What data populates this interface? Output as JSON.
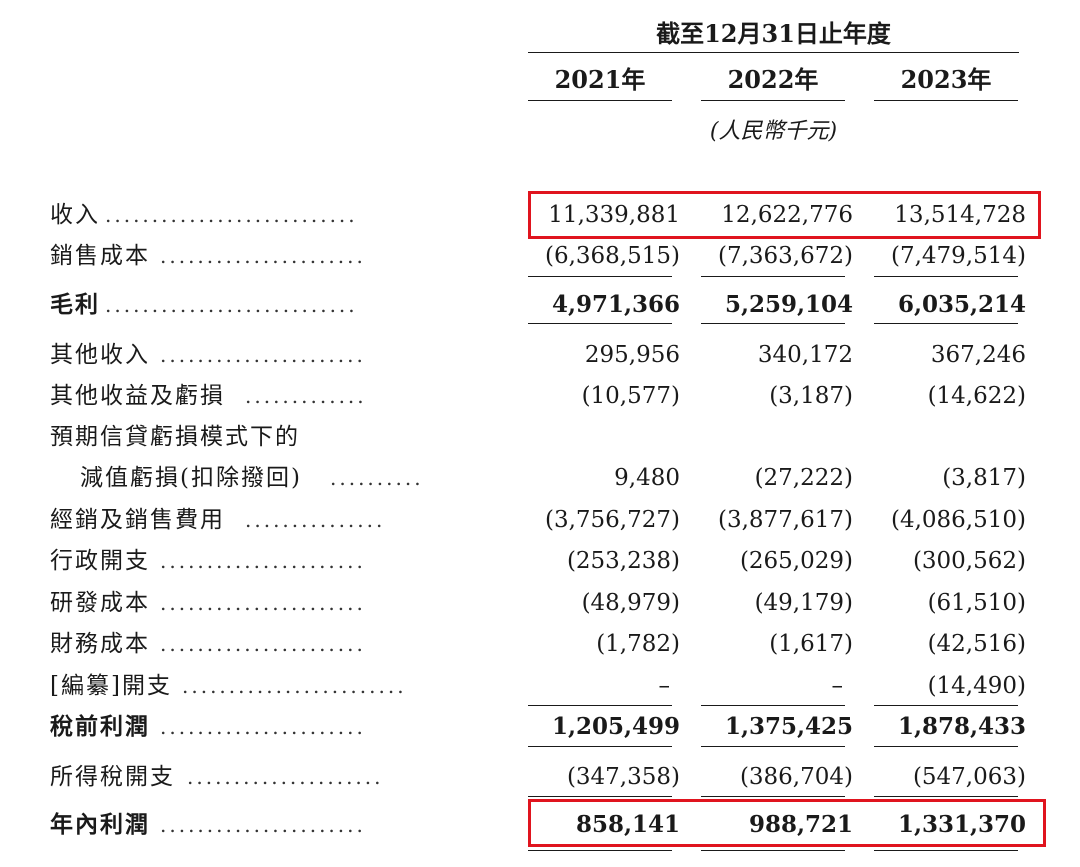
{
  "header": {
    "period": "截至12月31日止年度",
    "years": [
      "2021年",
      "2022年",
      "2023年"
    ],
    "unit": "(人民幣千元)"
  },
  "rows": [
    {
      "label": "收入",
      "leader": "...........................",
      "values": [
        "11,339,881",
        "12,622,776",
        "13,514,728"
      ]
    },
    {
      "label": "銷售成本",
      "leader": "......................",
      "values": [
        "(6,368,515)",
        "(7,363,672)",
        "(7,479,514)"
      ]
    },
    {
      "label": "毛利",
      "leader": "...........................",
      "values": [
        "4,971,366",
        "5,259,104",
        "6,035,214"
      ]
    },
    {
      "label": "其他收入",
      "leader": "......................",
      "values": [
        "295,956",
        "340,172",
        "367,246"
      ]
    },
    {
      "label": "其他收益及虧損",
      "leader": ".............",
      "values": [
        "(10,577)",
        "(3,187)",
        "(14,622)"
      ]
    },
    {
      "label": "預期信貸虧損模式下的",
      "leader": "",
      "values": [
        "",
        "",
        ""
      ]
    },
    {
      "label": "減值虧損(扣除撥回)",
      "leader": "..........",
      "values": [
        "9,480",
        "(27,222)",
        "(3,817)"
      ]
    },
    {
      "label": "經銷及銷售費用",
      "leader": "...............",
      "values": [
        "(3,756,727)",
        "(3,877,617)",
        "(4,086,510)"
      ]
    },
    {
      "label": "行政開支",
      "leader": "......................",
      "values": [
        "(253,238)",
        "(265,029)",
        "(300,562)"
      ]
    },
    {
      "label": "研發成本",
      "leader": "......................",
      "values": [
        "(48,979)",
        "(49,179)",
        "(61,510)"
      ]
    },
    {
      "label": "財務成本",
      "leader": "......................",
      "values": [
        "(1,782)",
        "(1,617)",
        "(42,516)"
      ]
    },
    {
      "label": "[編纂]開支",
      "leader": "........................",
      "values": [
        "–",
        "–",
        "(14,490)"
      ]
    },
    {
      "label": "稅前利潤",
      "leader": "......................",
      "values": [
        "1,205,499",
        "1,375,425",
        "1,878,433"
      ]
    },
    {
      "label": "所得稅開支",
      "leader": ".....................",
      "values": [
        "(347,358)",
        "(386,704)",
        "(547,063)"
      ]
    },
    {
      "label": "年內利潤",
      "leader": "......................",
      "values": [
        "858,141",
        "988,721",
        "1,331,370"
      ]
    }
  ]
}
